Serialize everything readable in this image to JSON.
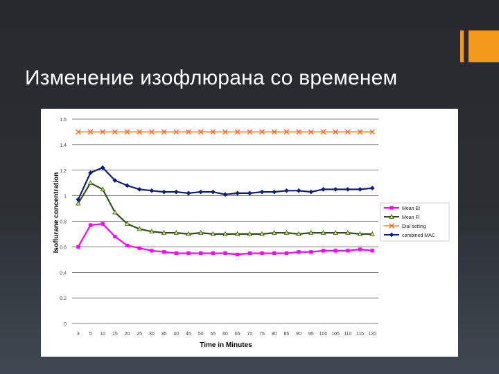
{
  "slide": {
    "title": "Изменение изофлюрана со временем"
  },
  "colors": {
    "accent": "#f39a1c",
    "mean_et": "#ff00ff",
    "mean_fi": "#2f4f1a",
    "mean_fi_marker": "#e0e060",
    "dial_setting": "#ff6a2a",
    "combined_mac": "#0d1f7a"
  },
  "chart_data": {
    "type": "line",
    "xlabel": "Time in Minutes",
    "ylabel": "Isoflurane concentration",
    "ylim": [
      0,
      1.6
    ],
    "yticks": [
      "0",
      "0.2",
      "0.4",
      "0.6",
      "0.8",
      "1",
      "1.2",
      "1.4",
      "1.6"
    ],
    "grid": true,
    "legend_position": "right",
    "x": [
      "3",
      "5",
      "10",
      "15",
      "20",
      "25",
      "30",
      "35",
      "40",
      "45",
      "50",
      "55",
      "60",
      "65",
      "70",
      "75",
      "80",
      "85",
      "90",
      "95",
      "100",
      "105",
      "110",
      "115",
      "120"
    ],
    "series": [
      {
        "name": "Mean Et",
        "color": "#ff00ff",
        "marker": "square",
        "values": [
          0.6,
          0.77,
          0.78,
          0.68,
          0.61,
          0.59,
          0.57,
          0.56,
          0.55,
          0.55,
          0.55,
          0.55,
          0.55,
          0.54,
          0.55,
          0.55,
          0.55,
          0.55,
          0.56,
          0.56,
          0.57,
          0.57,
          0.57,
          0.58,
          0.57
        ]
      },
      {
        "name": "Mean FI",
        "color": "#2f4f1a",
        "marker": "triangle",
        "values": [
          0.94,
          1.1,
          1.05,
          0.87,
          0.78,
          0.74,
          0.72,
          0.71,
          0.71,
          0.7,
          0.71,
          0.7,
          0.7,
          0.7,
          0.7,
          0.7,
          0.71,
          0.71,
          0.7,
          0.71,
          0.71,
          0.71,
          0.71,
          0.7,
          0.7
        ]
      },
      {
        "name": "Dial setting",
        "color": "#ff6a2a",
        "marker": "x",
        "values": [
          1.5,
          1.5,
          1.5,
          1.5,
          1.5,
          1.5,
          1.5,
          1.5,
          1.5,
          1.5,
          1.5,
          1.5,
          1.5,
          1.5,
          1.5,
          1.5,
          1.5,
          1.5,
          1.5,
          1.5,
          1.5,
          1.5,
          1.5,
          1.5,
          1.5
        ]
      },
      {
        "name": "combined MAC",
        "color": "#0d1f7a",
        "marker": "diamond",
        "values": [
          0.97,
          1.18,
          1.22,
          1.12,
          1.08,
          1.05,
          1.04,
          1.03,
          1.03,
          1.02,
          1.03,
          1.03,
          1.01,
          1.02,
          1.02,
          1.03,
          1.03,
          1.04,
          1.04,
          1.03,
          1.05,
          1.05,
          1.05,
          1.05,
          1.06
        ]
      }
    ]
  }
}
